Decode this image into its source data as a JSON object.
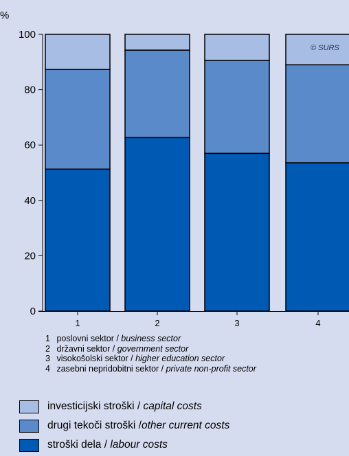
{
  "chart_data": {
    "type": "bar",
    "stacked": true,
    "unit_label": "%",
    "ylim": [
      0,
      100
    ],
    "yticks": [
      "0",
      "20",
      "40",
      "60",
      "80",
      "100"
    ],
    "categories": [
      "1",
      "2",
      "3",
      "4"
    ],
    "series": [
      {
        "name": "stroški dela / labour costs",
        "color": "#005ab4",
        "values": [
          51.3,
          62.7,
          57.0,
          53.6
        ]
      },
      {
        "name": "drugi tekoči stroški / other current costs",
        "color": "#5b8acb",
        "values": [
          36.0,
          31.6,
          33.6,
          35.4
        ]
      },
      {
        "name": "investicijski stroški / capital costs",
        "color": "#a8bde3",
        "values": [
          12.7,
          5.7,
          9.4,
          11.0
        ]
      }
    ],
    "copyright": "© SURS",
    "category_notes": [
      {
        "num": "1",
        "si": "poslovni sektor",
        "sep": " / ",
        "en": "business sector"
      },
      {
        "num": "2",
        "si": "državni sektor",
        "sep": " / ",
        "en": "government sector"
      },
      {
        "num": "3",
        "si": "visokošolski sektor",
        "sep": " / ",
        "en": "higher education sector"
      },
      {
        "num": "4",
        "si": "zasebni nepridobitni sektor",
        "sep": " / ",
        "en": "private non-profit sector"
      }
    ],
    "legend": [
      {
        "si": "investicijski stroški",
        "sep": " / ",
        "en": "capital costs",
        "color": "#a8bde3"
      },
      {
        "si": "drugi tekoči stroški",
        "sep": " /",
        "en": "other current costs",
        "color": "#5b8acb"
      },
      {
        "si": "stroški dela",
        "sep": " / ",
        "en": "labour costs",
        "color": "#005ab4"
      }
    ]
  }
}
